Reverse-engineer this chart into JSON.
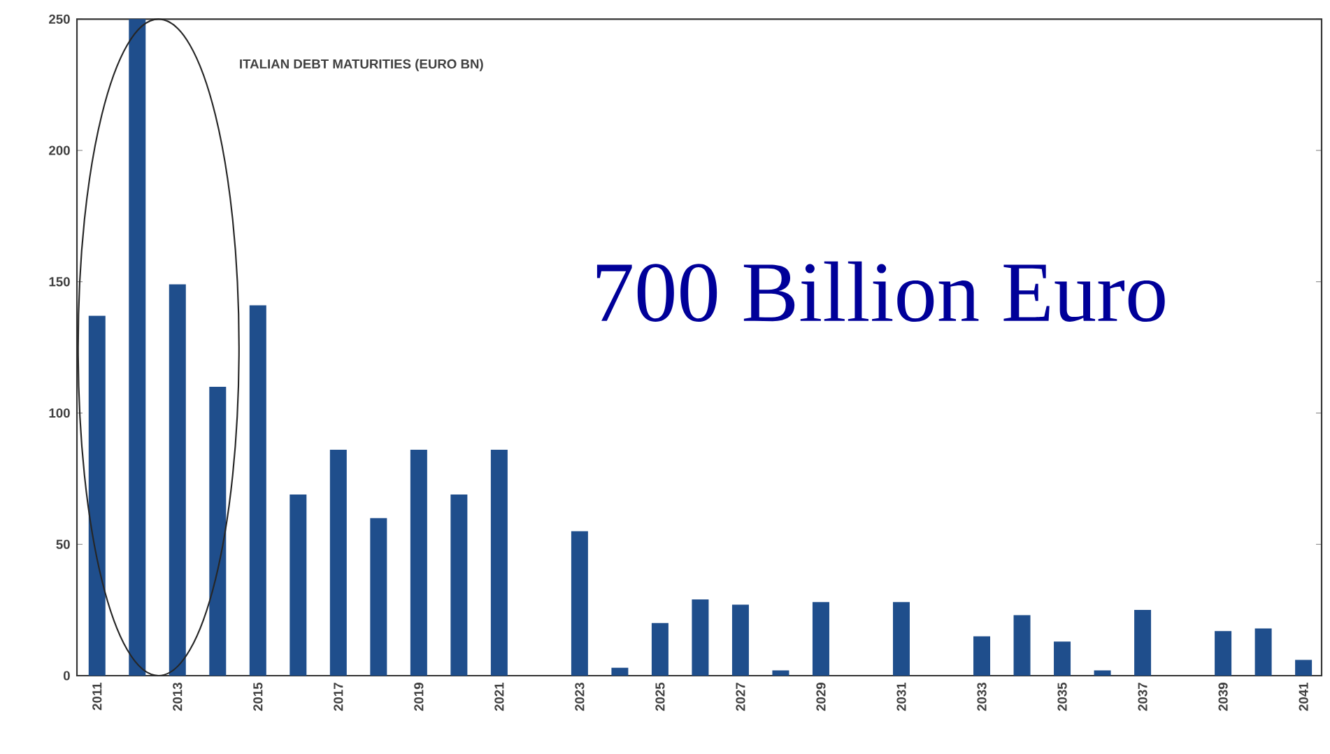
{
  "chart_data": {
    "type": "bar",
    "title": "ITALIAN DEBT MATURITIES (EURO BN)",
    "annotations": [
      "700 Billion Euro"
    ],
    "categories": [
      "2011",
      null,
      "2013",
      null,
      "2015",
      null,
      "2017",
      null,
      "2019",
      null,
      "2021",
      null,
      "2023",
      null,
      "2025",
      null,
      "2027",
      null,
      "2029",
      null,
      "2031",
      null,
      "2033",
      null,
      "2035",
      null,
      "2037",
      null,
      "2039",
      null,
      "2041"
    ],
    "values": [
      137,
      250,
      149,
      110,
      141,
      69,
      86,
      60,
      86,
      69,
      86,
      0,
      55,
      3,
      20,
      29,
      27,
      2,
      28,
      0,
      28,
      0,
      15,
      23,
      13,
      2,
      25,
      0,
      17,
      18,
      6
    ],
    "color": "#1f4e8c",
    "ylim": [
      0,
      250
    ],
    "yticks": [
      0,
      50,
      100,
      150,
      200,
      250
    ]
  }
}
